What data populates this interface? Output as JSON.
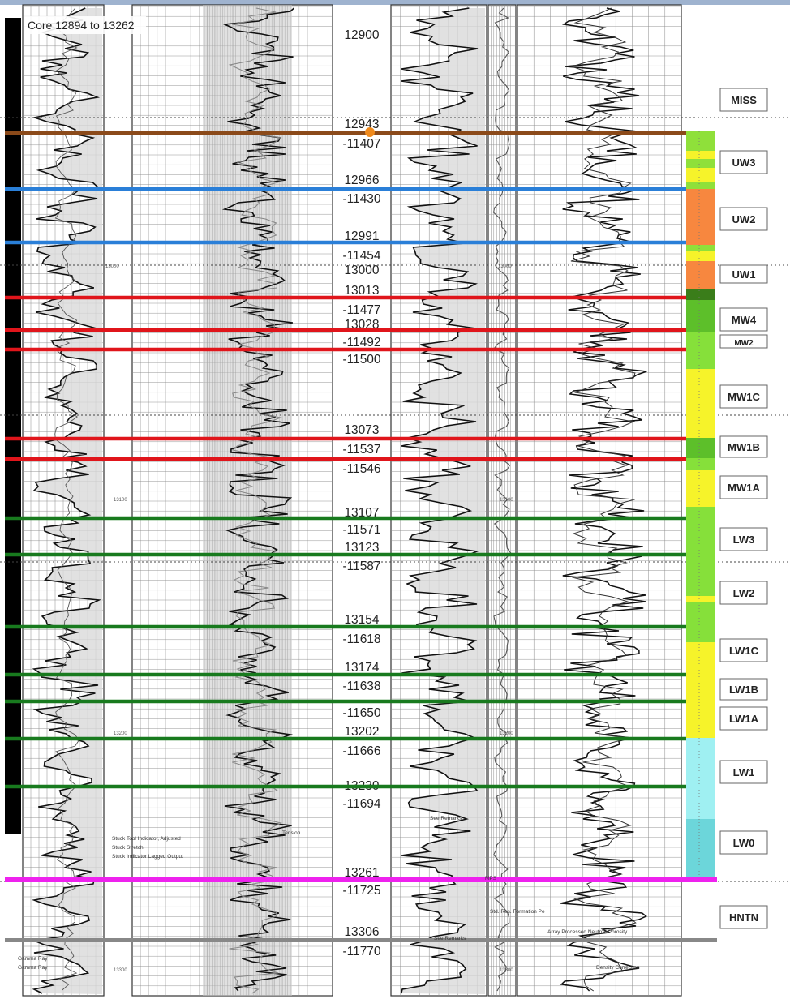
{
  "title": "Core 12894 to 13262",
  "depth_labels": [
    {
      "text": "12900"
    },
    {
      "text": "12943"
    },
    {
      "text": "-11407"
    },
    {
      "text": "12966"
    },
    {
      "text": "-11430"
    },
    {
      "text": "12991"
    },
    {
      "text": "-11454"
    },
    {
      "text": "13000"
    },
    {
      "text": "13013"
    },
    {
      "text": "-11477"
    },
    {
      "text": "13028"
    },
    {
      "text": "-11492"
    },
    {
      "text": "-11500"
    },
    {
      "text": "13073"
    },
    {
      "text": "-11537"
    },
    {
      "text": "-11546"
    },
    {
      "text": "13107"
    },
    {
      "text": "-11571"
    },
    {
      "text": "13123"
    },
    {
      "text": "-11587"
    },
    {
      "text": "13154"
    },
    {
      "text": "-11618"
    },
    {
      "text": "13174"
    },
    {
      "text": "-11638"
    },
    {
      "text": "-11650"
    },
    {
      "text": "13202"
    },
    {
      "text": "-11666"
    },
    {
      "text": "13230"
    },
    {
      "text": "-11694"
    },
    {
      "text": "13261"
    },
    {
      "text": "-11725"
    },
    {
      "text": "13306"
    },
    {
      "text": "-11770"
    }
  ],
  "boundaries": [
    {
      "color": "#8b4a1a"
    },
    {
      "color": "#2a7fd8"
    },
    {
      "color": "#2a7fd8"
    },
    {
      "color": "#e0151b"
    },
    {
      "color": "#e0151b"
    },
    {
      "color": "#e0151b"
    },
    {
      "color": "#e0151b"
    },
    {
      "color": "#e0151b"
    },
    {
      "color": "#187a1e"
    },
    {
      "color": "#187a1e"
    },
    {
      "color": "#187a1e"
    },
    {
      "color": "#187a1e"
    },
    {
      "color": "#187a1e"
    },
    {
      "color": "#187a1e"
    },
    {
      "color": "#187a1e"
    },
    {
      "color": "#ee22ee"
    }
  ],
  "zones": [
    "MISS",
    "UW3",
    "UW2",
    "UW1",
    "MW4",
    "MW2",
    "MW1C",
    "MW1B",
    "MW1A",
    "LW3",
    "LW2",
    "LW1C",
    "LW1B",
    "LW1A",
    "LW1",
    "LW0",
    "HNTN"
  ],
  "facies_colors": [
    "#8fe03a",
    "#f6f32a",
    "#f7873f",
    "#5dbf2a",
    "#86e03a",
    "#f6f32a",
    "#9ff0f2",
    "#6cd6da"
  ],
  "track_annotations": [
    "Stuck Tool Indicator, Adjusted",
    "Stuck Stretch",
    "Stuck Indicator Lagged Output",
    "Tension",
    "Gamma Ray",
    "Gamma Ray",
    "See Remarks",
    "See Remarks",
    "Std. Res. Formation Pe",
    "Array Processed Neutron Porosity",
    "Density Correction",
    "MPS"
  ],
  "small_depth_ticks": [
    "13000",
    "12900",
    "13100",
    "13200",
    "13300"
  ]
}
